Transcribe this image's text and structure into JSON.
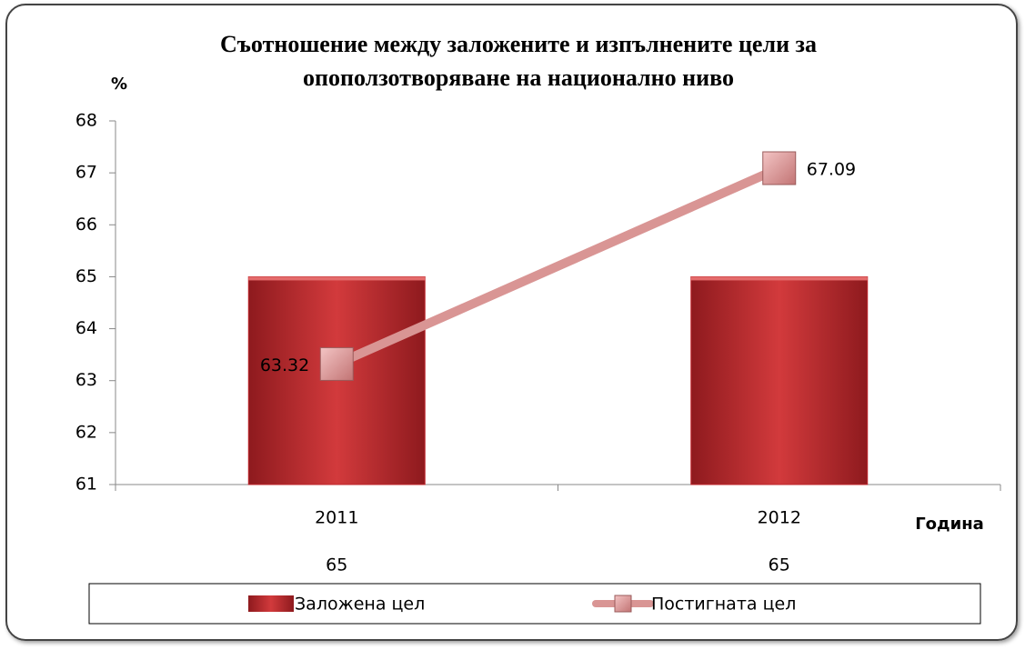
{
  "chart_data": {
    "type": "bar-line",
    "title": "Съотношение между заложените и изпълнените цели за опоползотворяване на национално ниво",
    "y_label": "%",
    "x_label": "Година",
    "categories": [
      "2011",
      "2012"
    ],
    "series": [
      {
        "name": "Заложена цел",
        "type": "bar",
        "color": "#c0272d",
        "values": [
          65,
          65
        ]
      },
      {
        "name": "Постигната цел",
        "type": "line",
        "color": "#d99594",
        "values": [
          63.32,
          67.09
        ]
      }
    ],
    "ylim": [
      61,
      68
    ],
    "yticks": [
      61,
      62,
      63,
      64,
      65,
      66,
      67,
      68
    ],
    "grid": false,
    "legend": "bottom"
  }
}
